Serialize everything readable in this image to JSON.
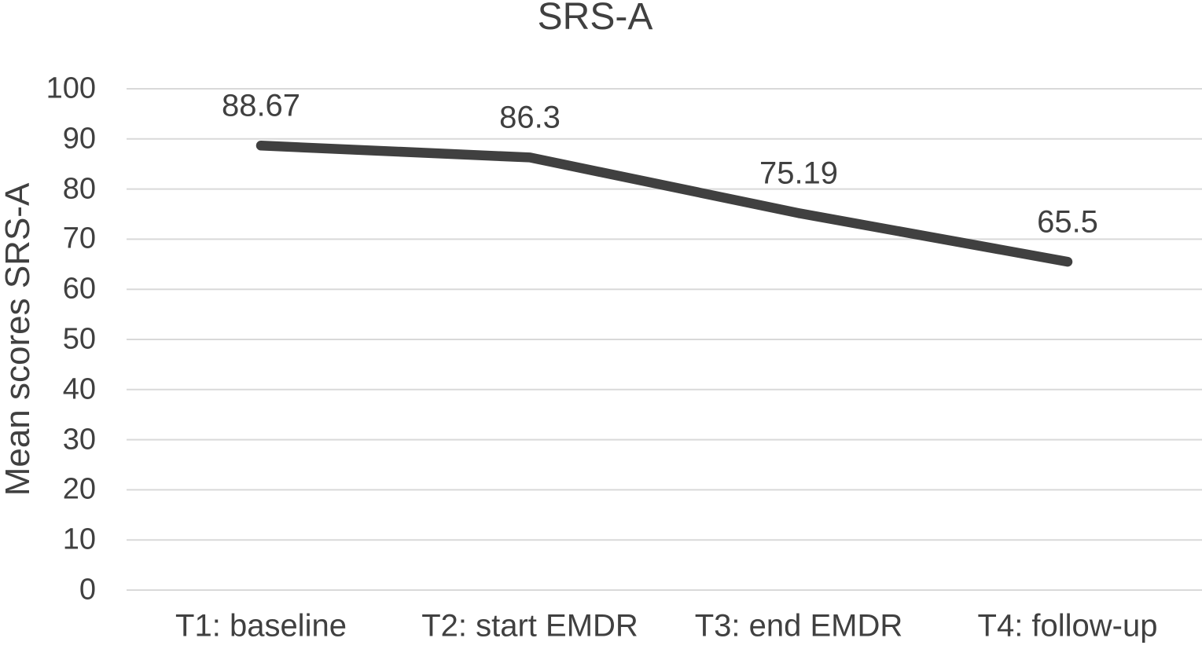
{
  "chart_data": {
    "type": "line",
    "title": "SRS-A",
    "ylabel": "Mean scores SRS-A",
    "xlabel": "",
    "categories": [
      "T1: baseline",
      "T2: start EMDR",
      "T3: end EMDR",
      "T4: follow-up"
    ],
    "series": [
      {
        "name": "SRS-A",
        "values": [
          88.67,
          86.3,
          75.19,
          65.5
        ],
        "labels": [
          "88.67",
          "86.3",
          "75.19",
          "65.5"
        ]
      }
    ],
    "ylim": [
      0,
      100
    ],
    "ytick_step": 10,
    "yticks": [
      0,
      10,
      20,
      30,
      40,
      50,
      60,
      70,
      80,
      90,
      100
    ],
    "grid": "horizontal",
    "legend": "none",
    "colors": {
      "line": "#404040",
      "text": "#404040",
      "gridline": "#d9d9d9",
      "background": "#ffffff"
    }
  }
}
